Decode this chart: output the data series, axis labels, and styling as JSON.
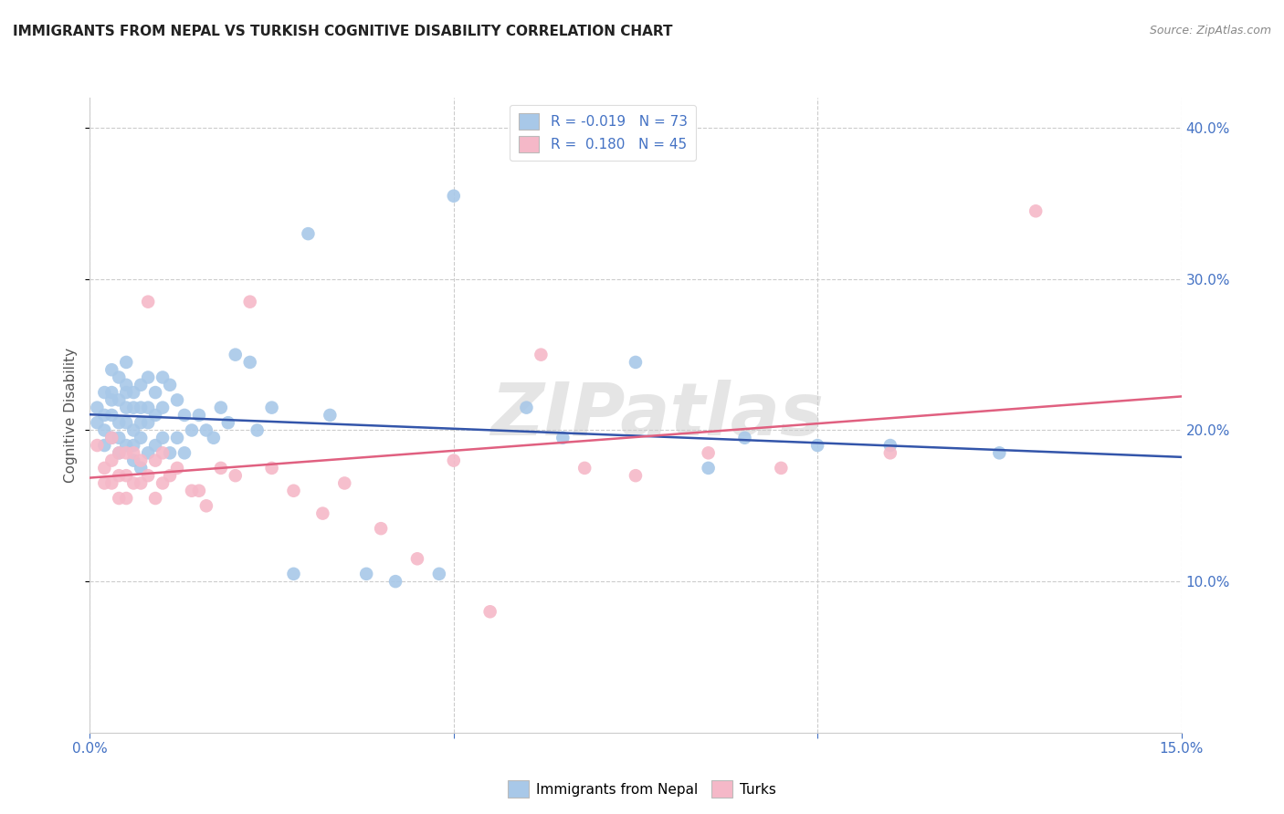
{
  "title": "IMMIGRANTS FROM NEPAL VS TURKISH COGNITIVE DISABILITY CORRELATION CHART",
  "source": "Source: ZipAtlas.com",
  "ylabel": "Cognitive Disability",
  "xlim": [
    0.0,
    0.15
  ],
  "ylim": [
    0.0,
    0.42
  ],
  "ytick_vals": [
    0.1,
    0.2,
    0.3,
    0.4
  ],
  "xtick_vals": [
    0.0,
    0.05,
    0.1,
    0.15
  ],
  "watermark": "ZIPatlas",
  "nepal_R": -0.019,
  "nepal_N": 73,
  "turks_R": 0.18,
  "turks_N": 45,
  "nepal_color": "#a8c8e8",
  "turks_color": "#f5b8c8",
  "nepal_line_color": "#3355aa",
  "turks_line_color": "#e06080",
  "nepal_x": [
    0.001,
    0.001,
    0.002,
    0.002,
    0.002,
    0.002,
    0.003,
    0.003,
    0.003,
    0.003,
    0.003,
    0.004,
    0.004,
    0.004,
    0.004,
    0.004,
    0.005,
    0.005,
    0.005,
    0.005,
    0.005,
    0.005,
    0.006,
    0.006,
    0.006,
    0.006,
    0.006,
    0.007,
    0.007,
    0.007,
    0.007,
    0.007,
    0.008,
    0.008,
    0.008,
    0.008,
    0.009,
    0.009,
    0.009,
    0.01,
    0.01,
    0.01,
    0.011,
    0.011,
    0.012,
    0.012,
    0.013,
    0.013,
    0.014,
    0.015,
    0.016,
    0.017,
    0.018,
    0.019,
    0.02,
    0.022,
    0.023,
    0.025,
    0.028,
    0.03,
    0.033,
    0.038,
    0.042,
    0.048,
    0.05,
    0.06,
    0.065,
    0.075,
    0.085,
    0.09,
    0.1,
    0.11,
    0.125
  ],
  "nepal_y": [
    0.205,
    0.215,
    0.225,
    0.21,
    0.2,
    0.19,
    0.24,
    0.225,
    0.21,
    0.22,
    0.195,
    0.235,
    0.22,
    0.205,
    0.195,
    0.185,
    0.245,
    0.23,
    0.215,
    0.225,
    0.205,
    0.19,
    0.225,
    0.215,
    0.2,
    0.19,
    0.18,
    0.23,
    0.215,
    0.205,
    0.195,
    0.175,
    0.235,
    0.215,
    0.205,
    0.185,
    0.225,
    0.21,
    0.19,
    0.235,
    0.215,
    0.195,
    0.23,
    0.185,
    0.22,
    0.195,
    0.21,
    0.185,
    0.2,
    0.21,
    0.2,
    0.195,
    0.215,
    0.205,
    0.25,
    0.245,
    0.2,
    0.215,
    0.105,
    0.33,
    0.21,
    0.105,
    0.1,
    0.105,
    0.355,
    0.215,
    0.195,
    0.245,
    0.175,
    0.195,
    0.19,
    0.19,
    0.185
  ],
  "turks_x": [
    0.001,
    0.002,
    0.002,
    0.003,
    0.003,
    0.003,
    0.004,
    0.004,
    0.004,
    0.005,
    0.005,
    0.005,
    0.006,
    0.006,
    0.007,
    0.007,
    0.008,
    0.008,
    0.009,
    0.009,
    0.01,
    0.01,
    0.011,
    0.012,
    0.014,
    0.015,
    0.016,
    0.018,
    0.02,
    0.022,
    0.025,
    0.028,
    0.032,
    0.035,
    0.04,
    0.045,
    0.05,
    0.055,
    0.062,
    0.068,
    0.075,
    0.085,
    0.095,
    0.11,
    0.13
  ],
  "turks_y": [
    0.19,
    0.175,
    0.165,
    0.195,
    0.18,
    0.165,
    0.185,
    0.17,
    0.155,
    0.185,
    0.17,
    0.155,
    0.185,
    0.165,
    0.18,
    0.165,
    0.285,
    0.17,
    0.18,
    0.155,
    0.185,
    0.165,
    0.17,
    0.175,
    0.16,
    0.16,
    0.15,
    0.175,
    0.17,
    0.285,
    0.175,
    0.16,
    0.145,
    0.165,
    0.135,
    0.115,
    0.18,
    0.08,
    0.25,
    0.175,
    0.17,
    0.185,
    0.175,
    0.185,
    0.345
  ]
}
